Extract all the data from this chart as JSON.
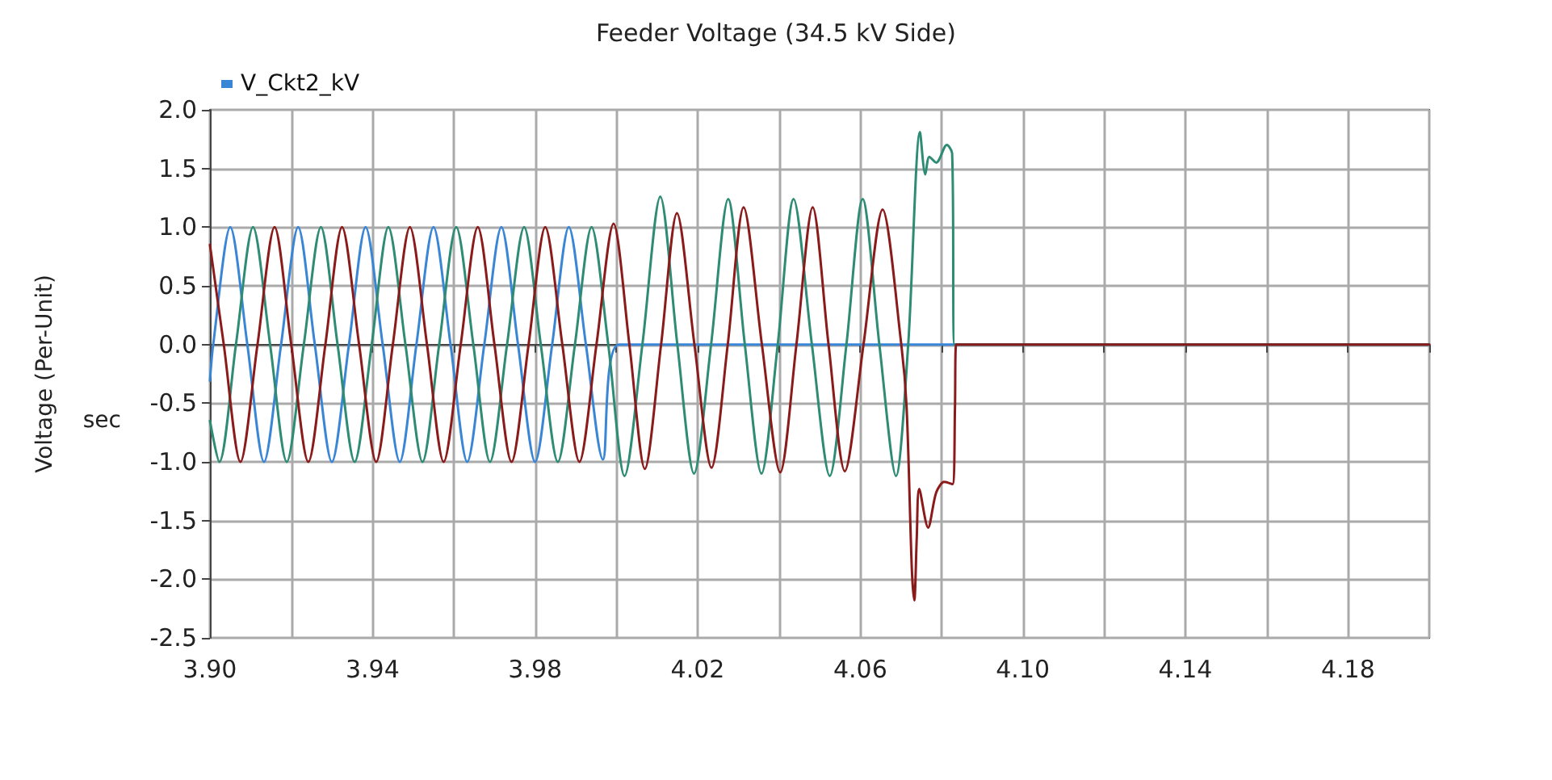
{
  "chart_data": {
    "type": "line",
    "title": "Feeder Voltage (34.5 kV Side)",
    "xlabel": "sec",
    "ylabel": "Voltage (Per-Unit)",
    "xlim": [
      3.9,
      4.2
    ],
    "xticks": [
      {
        "value": 3.9,
        "label": "3.90"
      },
      {
        "value": 3.92,
        "label": null
      },
      {
        "value": 3.94,
        "label": "3.94"
      },
      {
        "value": 3.96,
        "label": null
      },
      {
        "value": 3.98,
        "label": "3.98"
      },
      {
        "value": 4.0,
        "label": null
      },
      {
        "value": 4.02,
        "label": "4.02"
      },
      {
        "value": 4.04,
        "label": null
      },
      {
        "value": 4.06,
        "label": "4.06"
      },
      {
        "value": 4.08,
        "label": null
      },
      {
        "value": 4.1,
        "label": "4.10"
      },
      {
        "value": 4.12,
        "label": null
      },
      {
        "value": 4.14,
        "label": "4.14"
      },
      {
        "value": 4.16,
        "label": null
      },
      {
        "value": 4.18,
        "label": "4.18"
      },
      {
        "value": 4.2,
        "label": null
      }
    ],
    "ylim": [
      -2.5,
      2.0
    ],
    "yticks": [
      {
        "value": -2.5,
        "label": "-2.5"
      },
      {
        "value": -2,
        "label": "-2.0"
      },
      {
        "value": -1.5,
        "label": "-1.5"
      },
      {
        "value": -1,
        "label": "-1.0"
      },
      {
        "value": -0.5,
        "label": "-0.5"
      },
      {
        "value": 0,
        "label": "0.0"
      },
      {
        "value": 0.5,
        "label": "0.5"
      },
      {
        "value": 1,
        "label": "1.0"
      },
      {
        "value": 1.5,
        "label": "1.5"
      },
      {
        "value": 2,
        "label": "2.0"
      }
    ],
    "grid": true,
    "legend": "top left",
    "marker": "none",
    "line_style": "solid",
    "series": [
      {
        "name": "V_Ckt2_kV",
        "color": "#3a86d6",
        "x": [
          3.9,
          3.9008,
          3.905,
          3.9092,
          3.9133,
          3.9175,
          3.9217,
          3.9258,
          3.93,
          3.9342,
          3.9383,
          3.9425,
          3.9467,
          3.9508,
          3.955,
          3.9592,
          3.9633,
          3.9675,
          3.9717,
          3.9758,
          3.98,
          3.9842,
          3.9883,
          3.9925,
          3.9967,
          4.0006,
          4.2
        ],
        "values": [
          -0.31,
          0,
          1.0,
          0,
          -1.0,
          0,
          1.0,
          0,
          -1.0,
          0,
          1.0,
          0,
          -1.0,
          0,
          1.0,
          0,
          -1.0,
          0,
          1.0,
          0,
          -1.0,
          0,
          1.0,
          0,
          -0.98,
          0,
          0
        ]
      },
      {
        "color": "#2e8b74",
        "x": [
          3.9,
          3.9023,
          3.9064,
          3.9106,
          3.9148,
          3.9189,
          3.9231,
          3.9273,
          3.9314,
          3.9356,
          3.9398,
          3.9439,
          3.9481,
          3.9523,
          3.9564,
          3.9606,
          3.9648,
          3.9689,
          3.9731,
          3.9773,
          3.9814,
          3.9856,
          3.9898,
          3.9939,
          3.998,
          4.002,
          4.0064,
          4.0108,
          4.015,
          4.0191,
          4.0233,
          4.0275,
          4.0316,
          4.0357,
          4.0397,
          4.0436,
          4.0481,
          4.0525,
          4.0566,
          4.0606,
          4.0647,
          4.0688,
          4.0718,
          4.0747,
          4.076,
          4.077,
          4.0787,
          4.0813,
          4.0826,
          4.0832,
          4.2
        ],
        "values": [
          -0.65,
          -1.0,
          0,
          1.0,
          0,
          -1.0,
          0,
          1.0,
          0,
          -1.0,
          0,
          1.0,
          0,
          -1.0,
          0,
          1.0,
          0,
          -1.0,
          0,
          1.0,
          0,
          -1.0,
          0,
          1.0,
          0,
          -1.12,
          0,
          1.26,
          0,
          -1.1,
          0,
          1.24,
          0,
          -1.1,
          0,
          1.24,
          0,
          -1.12,
          0,
          1.24,
          0,
          -1.12,
          0,
          1.81,
          1.45,
          1.6,
          1.55,
          1.7,
          1.63,
          0,
          0
        ]
      },
      {
        "color": "#8b1a1a",
        "x": [
          3.9,
          3.9034,
          3.9075,
          3.9117,
          3.9159,
          3.92,
          3.9242,
          3.9284,
          3.9325,
          3.9367,
          3.9409,
          3.945,
          3.9492,
          3.9534,
          3.9575,
          3.9617,
          3.9659,
          3.97,
          3.9742,
          3.9784,
          3.9825,
          3.9867,
          3.9909,
          3.9951,
          3.9993,
          4.0032,
          4.007,
          4.011,
          4.0149,
          4.0192,
          4.0234,
          4.0274,
          4.0313,
          4.0358,
          4.0403,
          4.0443,
          4.0483,
          4.0522,
          4.0562,
          4.0608,
          4.0655,
          4.0701,
          4.0714,
          4.0727,
          4.0733,
          4.0739,
          4.0745,
          4.0767,
          4.0787,
          4.0807,
          4.0827,
          4.0833,
          4.0836,
          4.2
        ],
        "values": [
          0.85,
          0,
          -1.0,
          0,
          1.0,
          0,
          -1.0,
          0,
          1.0,
          0,
          -1.0,
          0,
          1.0,
          0,
          -1.0,
          0,
          1.0,
          0,
          -1.0,
          0,
          1.0,
          0,
          -1.0,
          0,
          1.03,
          0,
          -1.06,
          0,
          1.12,
          0,
          -1.05,
          0,
          1.17,
          0,
          -1.09,
          0,
          1.17,
          0,
          -1.08,
          0,
          1.15,
          0,
          -0.53,
          -1.92,
          -2.18,
          -1.65,
          -1.23,
          -1.56,
          -1.26,
          -1.17,
          -1.19,
          -0.55,
          0,
          0
        ]
      }
    ]
  }
}
